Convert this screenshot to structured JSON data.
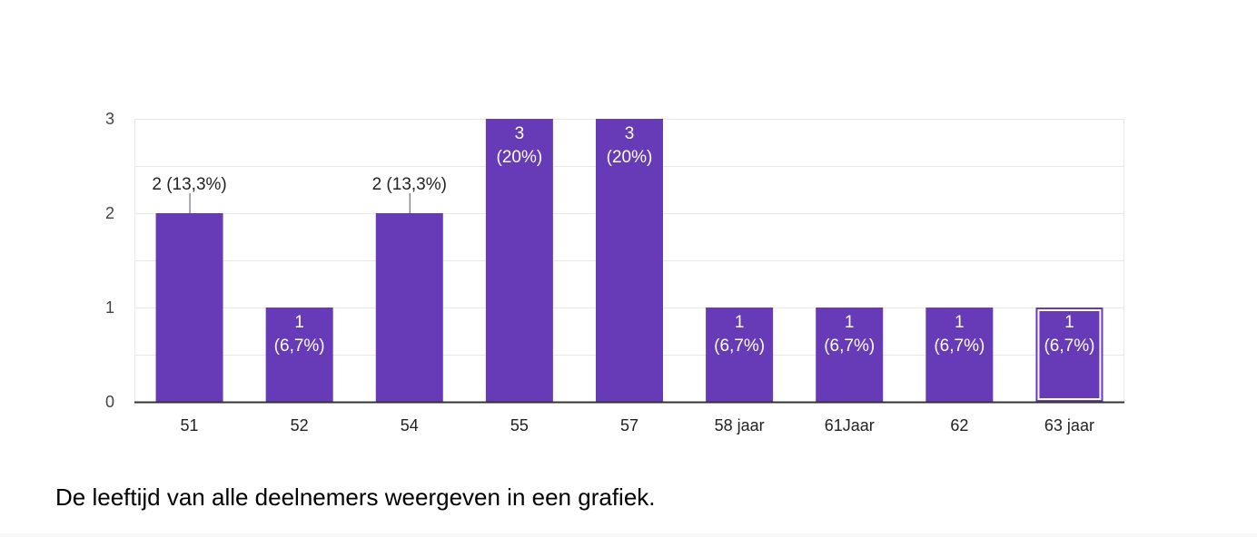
{
  "chart_data": {
    "type": "bar",
    "categories": [
      "51",
      "52",
      "54",
      "55",
      "57",
      "58 jaar",
      "61Jaar",
      "62",
      "63 jaar"
    ],
    "values": [
      2,
      1,
      2,
      3,
      3,
      1,
      1,
      1,
      1
    ],
    "data_labels": [
      "2 (13,3%)",
      [
        "1",
        "(6,7%)"
      ],
      "2 (13,3%)",
      [
        "3",
        "(20%)"
      ],
      [
        "3",
        "(20%)"
      ],
      [
        "1",
        "(6,7%)"
      ],
      [
        "1",
        "(6,7%)"
      ],
      [
        "1",
        "(6,7%)"
      ],
      [
        "1",
        "(6,7%)"
      ]
    ],
    "yticks": [
      "0",
      "1",
      "2",
      "3"
    ],
    "ylim": [
      0,
      3
    ],
    "grid": true,
    "bar_color": "#673ab7",
    "grid_color": "#e8e8e8",
    "axis_color": "#333333",
    "selected_index": 8
  },
  "caption": "De leeftijd van alle deelnemers weergeven in een grafiek."
}
